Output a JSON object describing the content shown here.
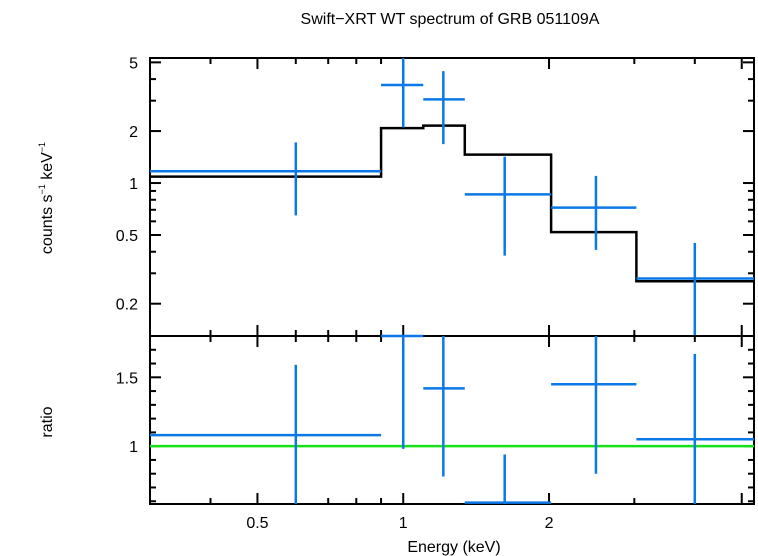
{
  "chart_data": {
    "type": "scatter",
    "title": "Swift−XRT WT spectrum of GRB 051109A",
    "xlabel": "Energy (keV)",
    "xscale": "log",
    "xlim": [
      0.3,
      5.3
    ],
    "colors": {
      "data": "#0a78e6",
      "model": "#000000",
      "unity": "#16e016"
    },
    "panels": [
      {
        "id": "spectrum",
        "ylabel_main": "counts s",
        "ylabel_sup1": "−1",
        "ylabel_mid": " keV",
        "ylabel_sup2": "−1",
        "yscale": "log",
        "ylim": [
          0.13,
          5.3
        ],
        "yticks": [
          {
            "v": 5,
            "label": "5"
          },
          {
            "v": 2,
            "label": "2"
          },
          {
            "v": 1,
            "label": "1"
          },
          {
            "v": 0.5,
            "label": "0.5"
          },
          {
            "v": 0.2,
            "label": "0.2"
          }
        ],
        "points": [
          {
            "x": 0.6,
            "xlo": 0.3,
            "xhi": 0.9,
            "y": 1.17,
            "ylo": 0.65,
            "yhi": 1.72
          },
          {
            "x": 1.0,
            "xlo": 0.9,
            "xhi": 1.1,
            "y": 3.7,
            "ylo": 2.1,
            "yhi": 5.3
          },
          {
            "x": 1.21,
            "xlo": 1.1,
            "xhi": 1.34,
            "y": 3.05,
            "ylo": 1.68,
            "yhi": 4.45
          },
          {
            "x": 1.62,
            "xlo": 1.34,
            "xhi": 2.02,
            "y": 0.86,
            "ylo": 0.38,
            "yhi": 1.42
          },
          {
            "x": 2.5,
            "xlo": 2.02,
            "xhi": 3.03,
            "y": 0.72,
            "ylo": 0.41,
            "yhi": 1.1
          },
          {
            "x": 4.0,
            "xlo": 3.03,
            "xhi": 5.3,
            "y": 0.28,
            "ylo": 0.13,
            "yhi": 0.45
          }
        ],
        "model_steps": [
          {
            "xlo": 0.3,
            "xhi": 0.9,
            "y": 1.09
          },
          {
            "xlo": 0.9,
            "xhi": 1.1,
            "y": 2.08
          },
          {
            "xlo": 1.1,
            "xhi": 1.34,
            "y": 2.15
          },
          {
            "xlo": 1.34,
            "xhi": 2.02,
            "y": 1.46
          },
          {
            "xlo": 2.02,
            "xhi": 3.03,
            "y": 0.52
          },
          {
            "xlo": 3.03,
            "xhi": 5.3,
            "y": 0.27
          }
        ]
      },
      {
        "id": "ratio",
        "ylabel_main": "ratio",
        "yscale": "linear",
        "ylim": [
          0.58,
          1.8
        ],
        "yticks": [
          {
            "v": 1.5,
            "label": "1.5"
          },
          {
            "v": 1,
            "label": "1"
          }
        ],
        "unity_line": 1,
        "points": [
          {
            "x": 0.6,
            "xlo": 0.3,
            "xhi": 0.9,
            "y": 1.08,
            "ylo": 0.58,
            "yhi": 1.59
          },
          {
            "x": 1.0,
            "xlo": 0.9,
            "xhi": 1.1,
            "y": 1.8,
            "ylo": 0.98,
            "yhi": 1.8
          },
          {
            "x": 1.21,
            "xlo": 1.1,
            "xhi": 1.34,
            "y": 1.42,
            "ylo": 0.78,
            "yhi": 1.8
          },
          {
            "x": 1.62,
            "xlo": 1.34,
            "xhi": 2.02,
            "y": 0.59,
            "ylo": 0.58,
            "yhi": 0.94
          },
          {
            "x": 2.5,
            "xlo": 2.02,
            "xhi": 3.03,
            "y": 1.45,
            "ylo": 0.8,
            "yhi": 1.8
          },
          {
            "x": 4.0,
            "xlo": 3.03,
            "xhi": 5.3,
            "y": 1.05,
            "ylo": 0.58,
            "yhi": 1.67
          }
        ]
      }
    ],
    "xticks": [
      {
        "v": 0.5,
        "label": "0.5"
      },
      {
        "v": 1,
        "label": "1"
      },
      {
        "v": 2,
        "label": "2"
      }
    ]
  }
}
